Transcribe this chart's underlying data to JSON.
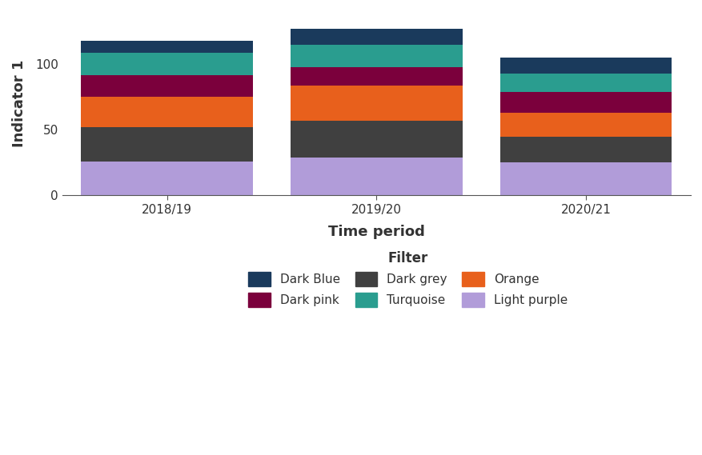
{
  "categories": [
    "2018/19",
    "2019/20",
    "2020/21"
  ],
  "segments": {
    "Light purple": [
      26,
      29,
      25
    ],
    "Dark grey": [
      26,
      28,
      20
    ],
    "Orange": [
      23,
      27,
      18
    ],
    "Dark pink": [
      17,
      14,
      16
    ],
    "Turquoise": [
      17,
      17,
      14
    ],
    "Dark Blue": [
      9,
      12,
      12
    ]
  },
  "colors": {
    "Light purple": "#b19cd9",
    "Dark grey": "#404040",
    "Orange": "#e8601c",
    "Dark pink": "#7b003c",
    "Turquoise": "#2a9d8f",
    "Dark Blue": "#1a3a5c"
  },
  "stack_order": [
    "Light purple",
    "Dark grey",
    "Orange",
    "Dark pink",
    "Turquoise",
    "Dark Blue"
  ],
  "legend_row1": [
    "Dark Blue",
    "Dark pink",
    "Dark grey"
  ],
  "legend_row2": [
    "Turquoise",
    "Orange",
    "Light purple"
  ],
  "xlabel": "Time period",
  "ylabel": "Indicator 1",
  "legend_title": "Filter",
  "bar_width": 0.82,
  "xlim": [
    -0.5,
    2.5
  ],
  "ylim": [
    0,
    140
  ],
  "yticks": [
    0,
    50,
    100
  ],
  "background_color": "#ffffff",
  "axis_fontsize": 13,
  "tick_fontsize": 11,
  "legend_fontsize": 11
}
